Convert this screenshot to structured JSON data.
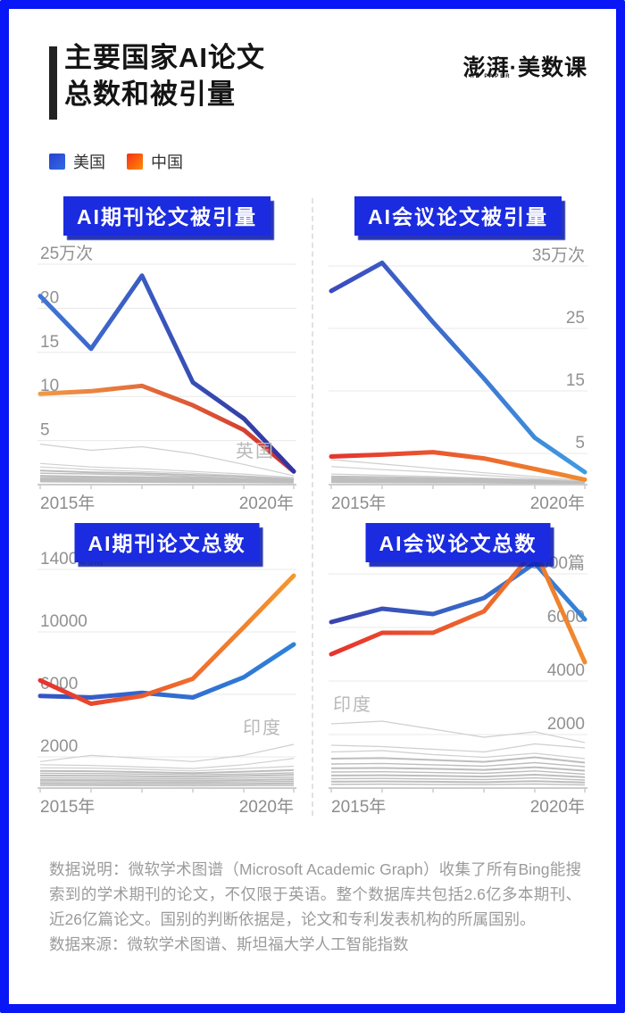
{
  "frame_color": "#0916f5",
  "header": {
    "title_line1": "主要国家AI论文",
    "title_line2": "总数和被引量",
    "logo_main": "澎湃·美数课",
    "logo_sub": "THE PAPER"
  },
  "legend": {
    "us": {
      "label": "美国",
      "color_from": "#2b3fd0",
      "color_to": "#2f6ce2"
    },
    "cn": {
      "label": "中国",
      "color_from": "#f5301c",
      "color_to": "#ff8b00"
    }
  },
  "chart_data": [
    {
      "id": "journal-citations",
      "type": "line",
      "title": "AI期刊论文被引量",
      "y_axis_side": "left",
      "y_unit": "万次",
      "top_value": 25,
      "y_ticks": [
        {
          "v": 25,
          "label": "25万次"
        },
        {
          "v": 20,
          "label": "20"
        },
        {
          "v": 15,
          "label": "15"
        },
        {
          "v": 10,
          "label": "10"
        },
        {
          "v": 5,
          "label": "5"
        }
      ],
      "x": [
        2015,
        2016,
        2017,
        2018,
        2019,
        2020
      ],
      "xlabel_start": "2015年",
      "xlabel_end": "2020年",
      "series": [
        {
          "name": "美国",
          "values": [
            21.4,
            15.4,
            23.7,
            11.6,
            7.5,
            1.5
          ],
          "gradient": [
            "#3f76d8",
            "#32339f"
          ]
        },
        {
          "name": "中国",
          "values": [
            10.3,
            10.6,
            11.2,
            9.0,
            6.2,
            1.5
          ],
          "gradient": [
            "#f09a45",
            "#cf2c2c"
          ]
        }
      ],
      "top_series_name": "美国",
      "annotation": "英国",
      "others": [
        [
          4.6,
          3.9,
          4.3,
          3.5,
          2.3,
          1.0
        ],
        [
          2.4,
          2.0,
          1.8,
          1.5,
          1.2,
          0.8
        ],
        [
          2.0,
          1.7,
          1.5,
          1.3,
          1.0,
          0.7
        ],
        [
          1.6,
          1.4,
          1.3,
          1.1,
          0.9,
          0.6
        ],
        [
          1.3,
          1.2,
          1.1,
          0.9,
          0.7,
          0.5
        ],
        [
          1.0,
          0.9,
          0.85,
          0.75,
          0.6,
          0.45
        ],
        [
          0.8,
          0.75,
          0.7,
          0.6,
          0.5,
          0.4
        ],
        [
          0.65,
          0.6,
          0.55,
          0.5,
          0.42,
          0.35
        ],
        [
          0.5,
          0.47,
          0.44,
          0.4,
          0.35,
          0.3
        ],
        [
          0.35,
          0.33,
          0.3,
          0.28,
          0.26,
          0.22
        ]
      ]
    },
    {
      "id": "conference-citations",
      "type": "line",
      "title": "AI会议论文被引量",
      "y_axis_side": "right",
      "y_unit": "万次",
      "top_value": 35,
      "y_ticks": [
        {
          "v": 35,
          "label": "35万次"
        },
        {
          "v": 25,
          "label": "25"
        },
        {
          "v": 15,
          "label": "15"
        },
        {
          "v": 5,
          "label": "5"
        }
      ],
      "x": [
        2015,
        2016,
        2017,
        2018,
        2019,
        2020
      ],
      "xlabel_start": "2015年",
      "xlabel_end": "2020年",
      "series": [
        {
          "name": "美国",
          "values": [
            31,
            35.5,
            26,
            17,
            7.5,
            2
          ],
          "gradient": [
            "#3b49bd",
            "#3f9be2"
          ]
        },
        {
          "name": "中国",
          "values": [
            4.5,
            4.8,
            5.2,
            4.2,
            2.5,
            0.8
          ],
          "gradient": [
            "#e6332e",
            "#f08b2e"
          ]
        }
      ],
      "top_series_name": "美国",
      "annotation": "",
      "others": [
        [
          4.0,
          3.3,
          2.6,
          1.9,
          1.3,
          0.6
        ],
        [
          2.9,
          2.4,
          2.0,
          1.5,
          1.0,
          0.5
        ],
        [
          1.7,
          1.5,
          1.3,
          1.05,
          0.8,
          0.45
        ],
        [
          1.3,
          1.2,
          1.05,
          0.9,
          0.7,
          0.4
        ],
        [
          1.05,
          0.95,
          0.85,
          0.72,
          0.58,
          0.35
        ],
        [
          0.85,
          0.78,
          0.7,
          0.6,
          0.48,
          0.3
        ],
        [
          0.65,
          0.6,
          0.55,
          0.47,
          0.38,
          0.27
        ],
        [
          0.5,
          0.46,
          0.42,
          0.36,
          0.3,
          0.22
        ],
        [
          0.35,
          0.32,
          0.3,
          0.27,
          0.23,
          0.18
        ]
      ]
    },
    {
      "id": "journal-totals",
      "type": "line",
      "title": "AI期刊论文总数",
      "y_axis_side": "left",
      "y_unit": "篇",
      "top_value": 14000,
      "y_ticks": [
        {
          "v": 14000,
          "label": "14000篇"
        },
        {
          "v": 10000,
          "label": "10000"
        },
        {
          "v": 6000,
          "label": "6000"
        },
        {
          "v": 2000,
          "label": "2000"
        }
      ],
      "x": [
        2015,
        2016,
        2017,
        2018,
        2019,
        2020
      ],
      "xlabel_start": "2015年",
      "xlabel_end": "2020年",
      "series": [
        {
          "name": "美国",
          "values": [
            5900,
            5800,
            6100,
            5800,
            7100,
            9200
          ],
          "gradient": [
            "#3553c6",
            "#2e82d8"
          ]
        },
        {
          "name": "中国",
          "values": [
            6900,
            5400,
            5900,
            7000,
            10300,
            13600
          ],
          "gradient": [
            "#e6332e",
            "#f5962e"
          ]
        }
      ],
      "top_series_name": "中国",
      "annotation": "印度",
      "others": [
        [
          1700,
          2100,
          1900,
          1700,
          2100,
          2800
        ],
        [
          1500,
          1450,
          1350,
          1250,
          1500,
          1900
        ],
        [
          1300,
          1280,
          1200,
          1100,
          1250,
          1400
        ],
        [
          1100,
          1080,
          1020,
          960,
          1050,
          1150
        ],
        [
          950,
          930,
          900,
          850,
          900,
          980
        ],
        [
          800,
          790,
          760,
          730,
          780,
          850
        ],
        [
          650,
          640,
          620,
          600,
          640,
          700
        ],
        [
          520,
          510,
          500,
          480,
          510,
          560
        ],
        [
          400,
          395,
          385,
          370,
          395,
          430
        ],
        [
          280,
          275,
          270,
          260,
          275,
          300
        ],
        [
          160,
          158,
          155,
          150,
          158,
          170
        ]
      ]
    },
    {
      "id": "conference-totals",
      "type": "line",
      "title": "AI会议论文总数",
      "y_axis_side": "right",
      "y_unit": "篇",
      "top_value": 8000,
      "y_ticks": [
        {
          "v": 8000,
          "label": "8000篇"
        },
        {
          "v": 6000,
          "label": "6000"
        },
        {
          "v": 4000,
          "label": "4000"
        },
        {
          "v": 2000,
          "label": "2000"
        }
      ],
      "x": [
        2015,
        2016,
        2017,
        2018,
        2019,
        2020
      ],
      "xlabel_start": "2015年",
      "xlabel_end": "2020年",
      "series": [
        {
          "name": "美国",
          "values": [
            6200,
            6700,
            6500,
            7100,
            8400,
            6300
          ],
          "gradient": [
            "#3a44b0",
            "#3584d8"
          ]
        },
        {
          "name": "中国",
          "values": [
            5000,
            5800,
            5800,
            6600,
            8900,
            4700
          ],
          "gradient": [
            "#e6332e",
            "#f08b2e"
          ]
        }
      ],
      "top_series_name": "中国",
      "annotation": "印度",
      "others": [
        [
          2400,
          2500,
          2200,
          1900,
          2100,
          1700
        ],
        [
          1600,
          1550,
          1450,
          1350,
          1650,
          1500
        ],
        [
          1350,
          1400,
          1250,
          1150,
          1300,
          1100
        ],
        [
          1100,
          1120,
          1050,
          980,
          1150,
          950
        ],
        [
          900,
          920,
          870,
          820,
          950,
          800
        ],
        [
          740,
          750,
          720,
          680,
          780,
          650
        ],
        [
          600,
          610,
          580,
          550,
          640,
          520
        ],
        [
          470,
          480,
          460,
          430,
          500,
          410
        ],
        [
          350,
          360,
          340,
          320,
          380,
          300
        ],
        [
          240,
          250,
          235,
          220,
          260,
          210
        ],
        [
          140,
          145,
          138,
          130,
          155,
          120
        ]
      ]
    }
  ],
  "footer": {
    "note": "数据说明：微软学术图谱（Microsoft Academic Graph）收集了所有Bing能搜索到的学术期刊的论文，不仅限于英语。整个数据库共包括2.6亿多本期刊、近26亿篇论文。国别的判断依据是，论文和专利发表机构的所属国别。",
    "source": "数据来源：微软学术图谱、斯坦福大学人工智能指数"
  }
}
